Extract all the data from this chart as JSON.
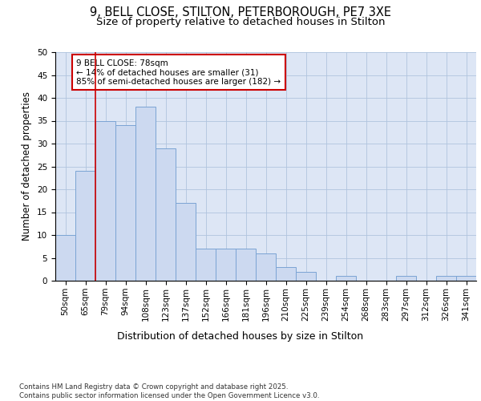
{
  "title_line1": "9, BELL CLOSE, STILTON, PETERBOROUGH, PE7 3XE",
  "title_line2": "Size of property relative to detached houses in Stilton",
  "xlabel": "Distribution of detached houses by size in Stilton",
  "ylabel": "Number of detached properties",
  "categories": [
    "50sqm",
    "65sqm",
    "79sqm",
    "94sqm",
    "108sqm",
    "123sqm",
    "137sqm",
    "152sqm",
    "166sqm",
    "181sqm",
    "196sqm",
    "210sqm",
    "225sqm",
    "239sqm",
    "254sqm",
    "268sqm",
    "283sqm",
    "297sqm",
    "312sqm",
    "326sqm",
    "341sqm"
  ],
  "values": [
    10,
    24,
    35,
    34,
    38,
    29,
    17,
    7,
    7,
    7,
    6,
    3,
    2,
    0,
    1,
    0,
    0,
    1,
    0,
    1,
    1
  ],
  "bar_color": "#ccd9f0",
  "bar_edge_color": "#7ba4d4",
  "vline_x": 1.5,
  "vline_color": "#cc0000",
  "annotation_text": "9 BELL CLOSE: 78sqm\n← 14% of detached houses are smaller (31)\n85% of semi-detached houses are larger (182) →",
  "annotation_box_color": "#ffffff",
  "annotation_box_edge": "#cc0000",
  "ylim": [
    0,
    50
  ],
  "yticks": [
    0,
    5,
    10,
    15,
    20,
    25,
    30,
    35,
    40,
    45,
    50
  ],
  "background_color": "#dde6f5",
  "footer_text": "Contains HM Land Registry data © Crown copyright and database right 2025.\nContains public sector information licensed under the Open Government Licence v3.0.",
  "title_fontsize": 10.5,
  "subtitle_fontsize": 9.5,
  "tick_fontsize": 7.5,
  "ylabel_fontsize": 8.5,
  "xlabel_fontsize": 9,
  "annotation_fontsize": 7.5,
  "footer_fontsize": 6.2
}
